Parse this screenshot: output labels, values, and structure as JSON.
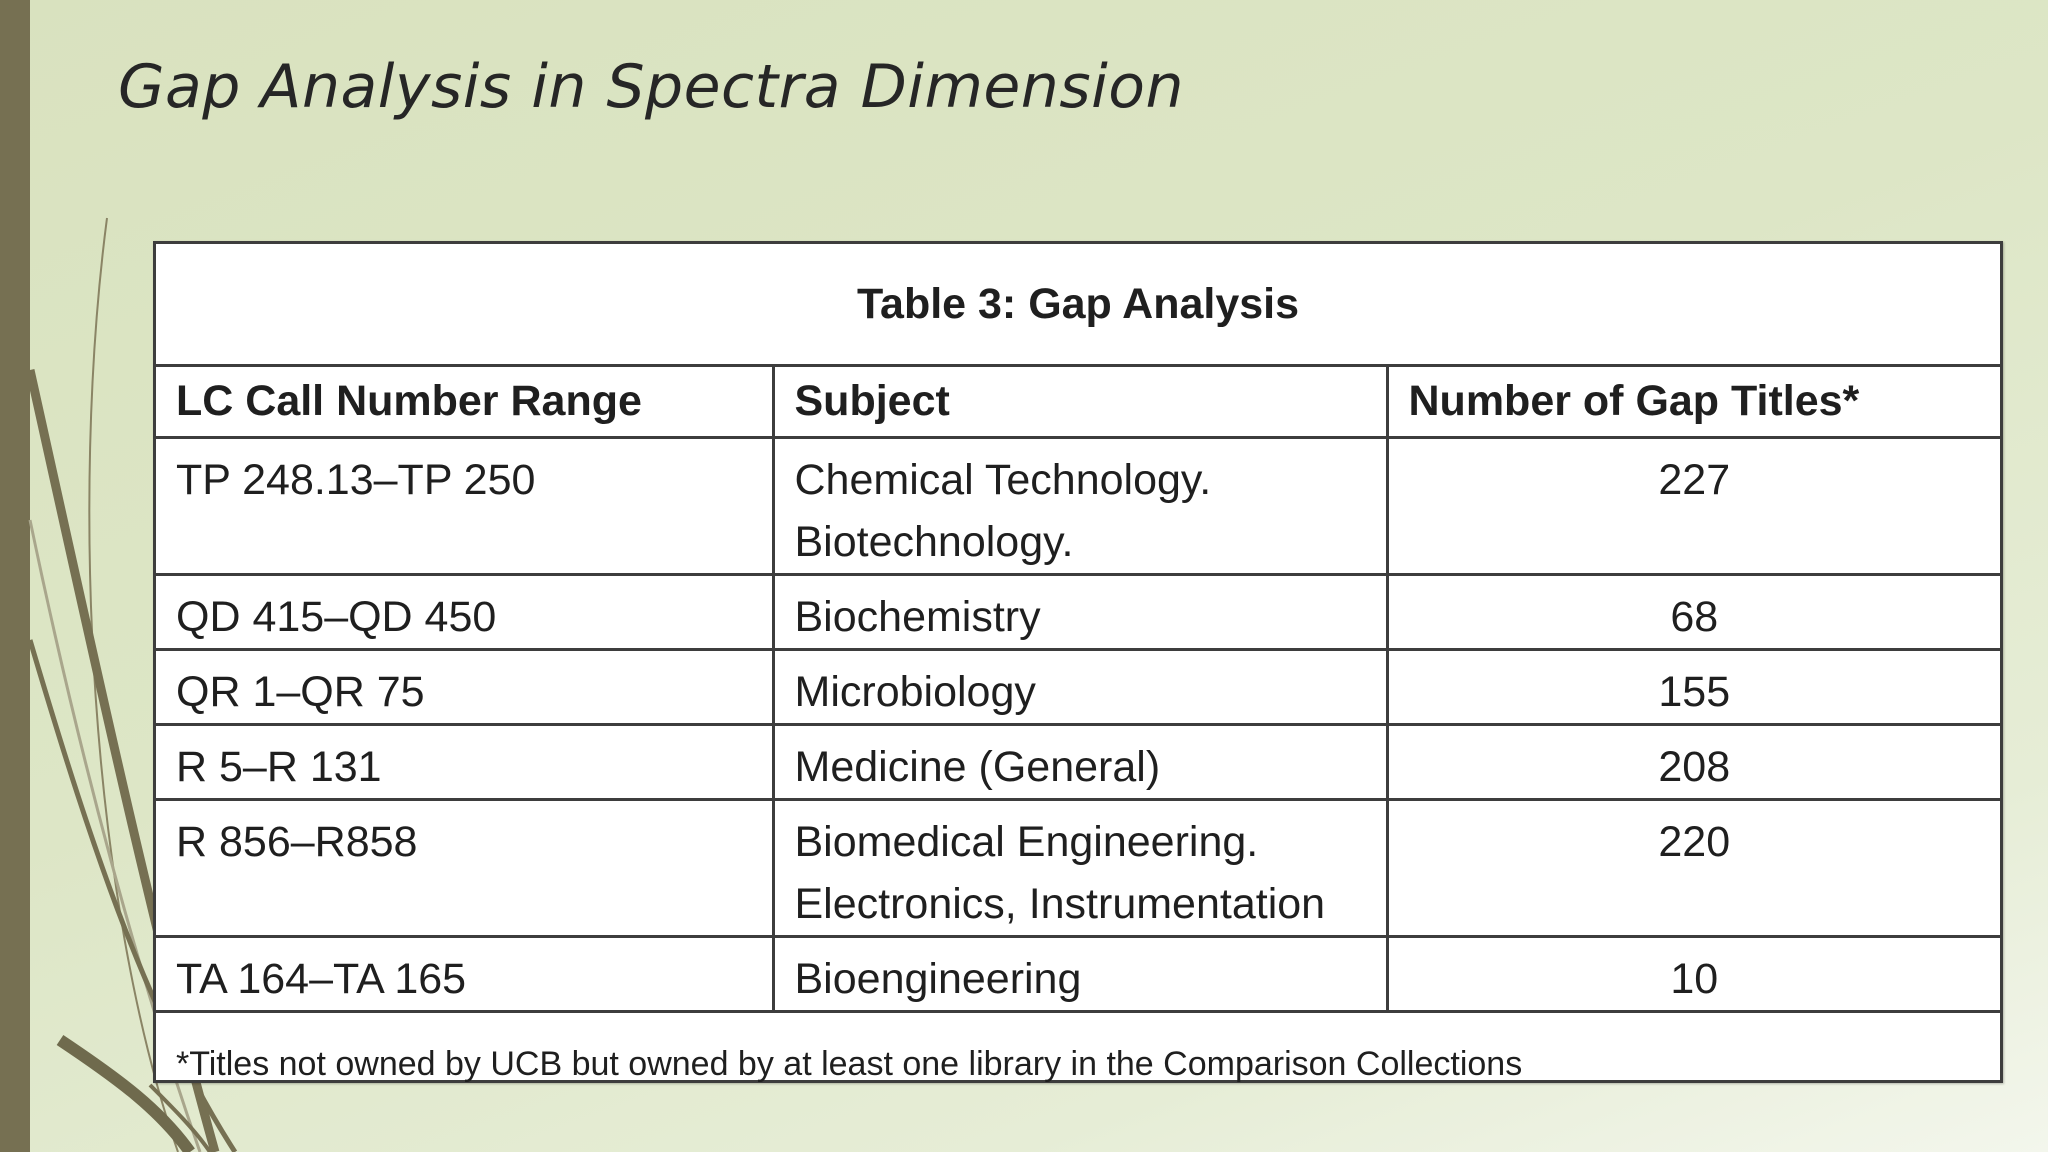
{
  "slide": {
    "title": "Gap Analysis in Spectra Dimension"
  },
  "table": {
    "caption": "Table 3: Gap Analysis",
    "columns": [
      "LC Call Number Range",
      "Subject",
      "Number of Gap Titles*"
    ],
    "rows": [
      {
        "range": "TP 248.13–TP 250",
        "subject_line1": "Chemical Technology.",
        "subject_line2": "Biotechnology.",
        "count": "227"
      },
      {
        "range": "QD 415–QD 450",
        "subject_line1": "Biochemistry",
        "subject_line2": "",
        "count": "68"
      },
      {
        "range": "QR 1–QR 75",
        "subject_line1": "Microbiology",
        "subject_line2": "",
        "count": "155"
      },
      {
        "range": "R 5–R 131",
        "subject_line1": "Medicine (General)",
        "subject_line2": "",
        "count": "208"
      },
      {
        "range": "R 856–R858",
        "subject_line1": "Biomedical Engineering.",
        "subject_line2": "Electronics, Instrumentation",
        "count": "220"
      },
      {
        "range": "TA 164–TA 165",
        "subject_line1": "Bioengineering",
        "subject_line2": "",
        "count": "10"
      }
    ],
    "footnote": "*Titles not owned by UCB but owned by at least one library in the Comparison Collections"
  },
  "colors": {
    "background": "#dde6c6",
    "accent_bar": "#767052",
    "decor_lines": "#8a8465"
  },
  "icons": {
    "decoration": "sweeping-lines-decoration"
  }
}
